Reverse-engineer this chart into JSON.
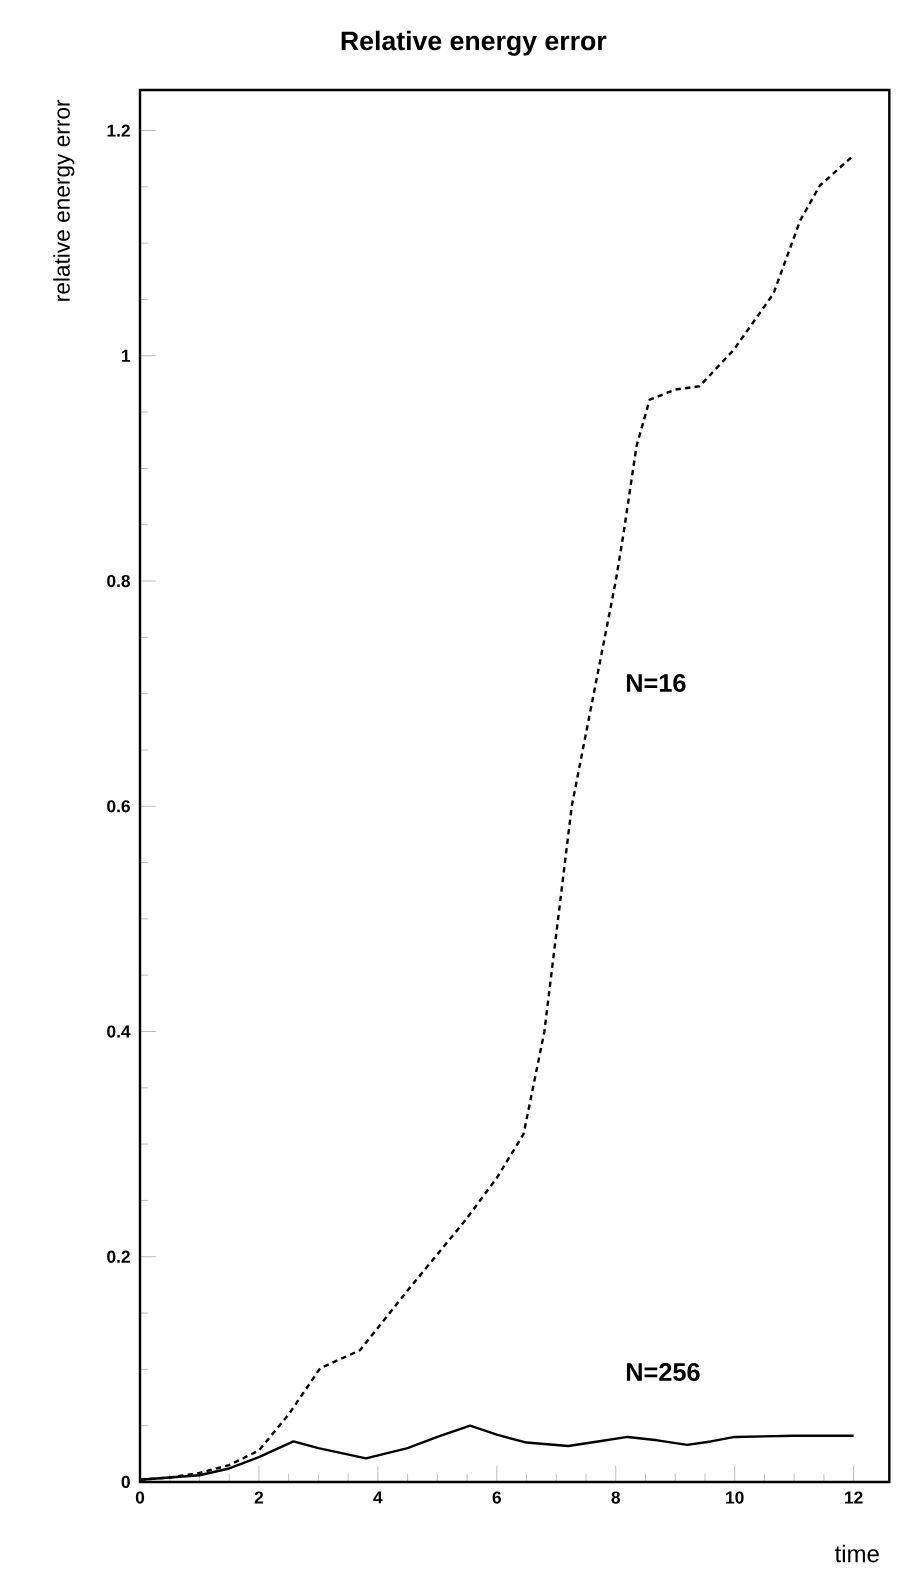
{
  "chart_data": {
    "type": "line",
    "title": "Relative energy error",
    "xlabel": "time",
    "ylabel": "relative energy error",
    "xlim": [
      0,
      12.6
    ],
    "ylim": [
      0,
      1.236
    ],
    "xticks": [
      0,
      2,
      4,
      6,
      8,
      10,
      12
    ],
    "yticks": [
      0,
      0.2,
      0.4,
      0.6,
      0.8,
      1,
      1.2
    ],
    "series": [
      {
        "name": "N=16",
        "color": "#000000",
        "line_style": "dashed",
        "x": [
          0,
          0.5,
          1,
          1.5,
          2,
          2.5,
          3.03,
          3.7,
          4.5,
          5.48,
          6.0,
          6.45,
          6.8,
          7.26,
          7.63,
          8.0,
          8.13,
          8.35,
          8.57,
          9.0,
          9.41,
          9.98,
          10.65,
          11.1,
          11.43,
          12.0
        ],
        "values": [
          0.002,
          0.004,
          0.008,
          0.015,
          0.028,
          0.06,
          0.101,
          0.117,
          0.17,
          0.233,
          0.27,
          0.309,
          0.4,
          0.6,
          0.7,
          0.8,
          0.842,
          0.92,
          0.961,
          0.97,
          0.973,
          1.005,
          1.055,
          1.12,
          1.151,
          1.178
        ]
      },
      {
        "name": "N=256",
        "color": "#000000",
        "line_style": "solid",
        "x": [
          0,
          0.5,
          1,
          1.5,
          2,
          2.58,
          3.0,
          3.8,
          4.5,
          5.0,
          5.55,
          6.0,
          6.5,
          7.2,
          7.7,
          8.2,
          8.7,
          9.2,
          9.6,
          10.0,
          11.0,
          12.0
        ],
        "values": [
          0.002,
          0.004,
          0.006,
          0.012,
          0.022,
          0.036,
          0.03,
          0.021,
          0.03,
          0.04,
          0.05,
          0.042,
          0.035,
          0.032,
          0.036,
          0.04,
          0.037,
          0.033,
          0.036,
          0.04,
          0.041,
          0.041
        ]
      }
    ]
  }
}
